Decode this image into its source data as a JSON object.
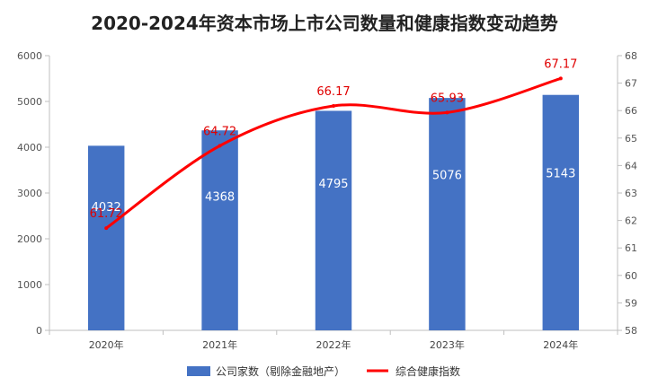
{
  "chart_data": {
    "type": "bar+line",
    "title": "2020-2024年资本市场上市公司数量和健康指数变动趋势",
    "categories": [
      "2020年",
      "2021年",
      "2022年",
      "2023年",
      "2024年"
    ],
    "series": [
      {
        "name": "公司家数（剔除金融地产）",
        "type": "bar",
        "axis": "left",
        "values": [
          4032,
          4368,
          4795,
          5076,
          5143
        ],
        "value_labels": [
          "4032",
          "4368",
          "4795",
          "5076",
          "5143"
        ],
        "color": "#4472c4"
      },
      {
        "name": "综合健康指数",
        "type": "line",
        "axis": "right",
        "values": [
          61.72,
          64.72,
          66.17,
          65.93,
          67.17
        ],
        "value_labels": [
          "61.72",
          "64.72",
          "66.17",
          "65.93",
          "67.17"
        ],
        "color": "#ff0000"
      }
    ],
    "y_left": {
      "min": 0,
      "max": 6000,
      "ticks": [
        "0",
        "1000",
        "2000",
        "3000",
        "4000",
        "5000",
        "6000"
      ]
    },
    "y_right": {
      "min": 58,
      "max": 68,
      "ticks": [
        "58",
        "59",
        "60",
        "61",
        "62",
        "63",
        "64",
        "65",
        "66",
        "67",
        "68"
      ]
    },
    "grid": false,
    "legend_position": "bottom"
  }
}
